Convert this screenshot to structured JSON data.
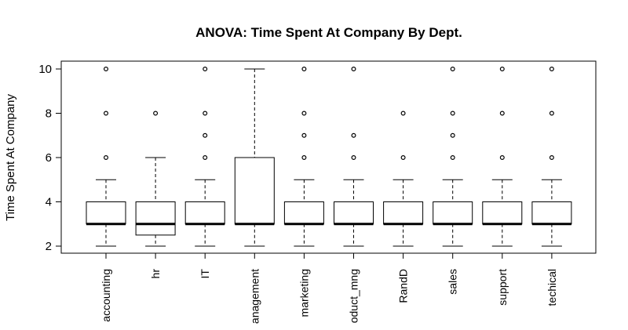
{
  "chart_data": {
    "type": "box",
    "title": "ANOVA: Time Spent At Company By Dept.",
    "xlabel": "",
    "ylabel": "Time Spent At Company",
    "ylim": [
      2,
      10
    ],
    "yticks": [
      2,
      4,
      6,
      8,
      10
    ],
    "grid": false,
    "categories": [
      "accounting",
      "hr",
      "IT",
      "management",
      "marketing",
      "product_mng",
      "RandD",
      "sales",
      "support",
      "technical"
    ],
    "category_labels_shown": [
      "accounting",
      "hr",
      "IT",
      "anagement",
      "marketing",
      "oduct_mng",
      "RandD",
      "sales",
      "support",
      "techical"
    ],
    "boxes": [
      {
        "min": 2,
        "q1": 3,
        "median": 3,
        "q3": 4,
        "max": 5,
        "outliers": [
          6,
          8,
          10
        ]
      },
      {
        "min": 2,
        "q1": 2.5,
        "median": 3,
        "q3": 4,
        "max": 6,
        "outliers": [
          8
        ]
      },
      {
        "min": 2,
        "q1": 3,
        "median": 3,
        "q3": 4,
        "max": 5,
        "outliers": [
          6,
          7,
          8,
          10
        ]
      },
      {
        "min": 2,
        "q1": 3,
        "median": 3,
        "q3": 6,
        "max": 10,
        "outliers": []
      },
      {
        "min": 2,
        "q1": 3,
        "median": 3,
        "q3": 4,
        "max": 5,
        "outliers": [
          6,
          7,
          8,
          10
        ]
      },
      {
        "min": 2,
        "q1": 3,
        "median": 3,
        "q3": 4,
        "max": 5,
        "outliers": [
          6,
          7,
          10
        ]
      },
      {
        "min": 2,
        "q1": 3,
        "median": 3,
        "q3": 4,
        "max": 5,
        "outliers": [
          6,
          8
        ]
      },
      {
        "min": 2,
        "q1": 3,
        "median": 3,
        "q3": 4,
        "max": 5,
        "outliers": [
          6,
          7,
          8,
          10
        ]
      },
      {
        "min": 2,
        "q1": 3,
        "median": 3,
        "q3": 4,
        "max": 5,
        "outliers": [
          6,
          8,
          10
        ]
      },
      {
        "min": 2,
        "q1": 3,
        "median": 3,
        "q3": 4,
        "max": 5,
        "outliers": [
          6,
          8,
          10
        ]
      }
    ]
  }
}
